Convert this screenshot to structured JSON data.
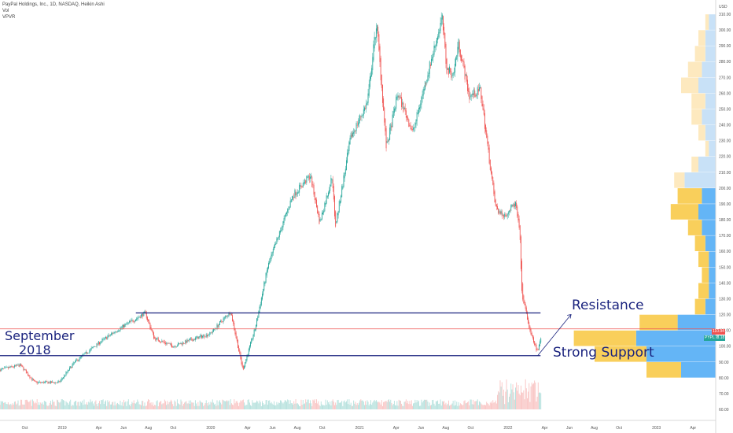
{
  "header": {
    "symbol_line": "PayPal Holdings, Inc., 1D, NASDAQ, Heikin Ashi",
    "vol_label": "Vol",
    "vpvr_label": "VPVR"
  },
  "currency_label": "USD",
  "annotations": {
    "resistance": "Resistance",
    "strong_support": "Strong Support",
    "september": "September",
    "year": "2018"
  },
  "price_tags": [
    {
      "label": "110.94",
      "color": "#ef5350",
      "value": 110.94
    },
    {
      "label": "108.18",
      "color": "#26a69a",
      "value": 108.18
    },
    {
      "label": "PYPL",
      "color": "#26a69a",
      "value": 108.18
    }
  ],
  "colors": {
    "bull": "#26a69a",
    "bear": "#ef5350",
    "level_line": "#1a237e",
    "current_line": "#ef5350",
    "vp_yellow": "#f9cf5b",
    "vp_blue": "#64b5f6",
    "vp_yellow_light": "#fde9bf",
    "vp_blue_light": "#c8e1f7"
  },
  "chart_data": {
    "type": "candlestick",
    "subtype": "heikin-ashi",
    "title": "PayPal Holdings, Inc., 1D, NASDAQ, Heikin Ashi",
    "y_unit": "USD",
    "ylim": [
      60,
      310
    ],
    "y_ticks": [
      60,
      70,
      80,
      90,
      100,
      110,
      120,
      130,
      140,
      150,
      160,
      170,
      180,
      190,
      200,
      210,
      220,
      230,
      240,
      250,
      260,
      270,
      280,
      290,
      300,
      310
    ],
    "x_ticks": [
      "Oct",
      "2019",
      "Apr",
      "Jun",
      "Aug",
      "Oct",
      "2020",
      "Apr",
      "Jun",
      "Aug",
      "Oct",
      "2021",
      "Apr",
      "Jun",
      "Aug",
      "Oct",
      "2022",
      "Apr",
      "Jun",
      "Aug",
      "Oct",
      "2023",
      "Apr"
    ],
    "x_range": [
      "2018-08-01",
      "2023-06-15"
    ],
    "price_path": [
      [
        "2018-08-01",
        85
      ],
      [
        "2018-09-20",
        88
      ],
      [
        "2018-10-25",
        77
      ],
      [
        "2018-12-24",
        77
      ],
      [
        "2019-02-01",
        90
      ],
      [
        "2019-04-01",
        102
      ],
      [
        "2019-05-15",
        110
      ],
      [
        "2019-07-24",
        121
      ],
      [
        "2019-08-15",
        105
      ],
      [
        "2019-10-01",
        100
      ],
      [
        "2019-11-15",
        104
      ],
      [
        "2019-12-31",
        108
      ],
      [
        "2020-02-19",
        122
      ],
      [
        "2020-03-20",
        85
      ],
      [
        "2020-04-20",
        112
      ],
      [
        "2020-05-20",
        150
      ],
      [
        "2020-07-20",
        195
      ],
      [
        "2020-09-02",
        208
      ],
      [
        "2020-09-25",
        178
      ],
      [
        "2020-10-26",
        208
      ],
      [
        "2020-11-02",
        175
      ],
      [
        "2020-12-10",
        232
      ],
      [
        "2021-01-20",
        254
      ],
      [
        "2021-02-12",
        305
      ],
      [
        "2021-03-08",
        225
      ],
      [
        "2021-04-05",
        260
      ],
      [
        "2021-05-12",
        235
      ],
      [
        "2021-06-10",
        265
      ],
      [
        "2021-07-23",
        308
      ],
      [
        "2021-08-03",
        275
      ],
      [
        "2021-08-20",
        272
      ],
      [
        "2021-09-01",
        292
      ],
      [
        "2021-09-28",
        258
      ],
      [
        "2021-10-25",
        262
      ],
      [
        "2021-11-10",
        230
      ],
      [
        "2021-12-01",
        188
      ],
      [
        "2021-12-20",
        182
      ],
      [
        "2022-01-20",
        190
      ],
      [
        "2022-01-31",
        168
      ],
      [
        "2022-02-03",
        135
      ],
      [
        "2022-02-25",
        108
      ],
      [
        "2022-03-15",
        96
      ],
      [
        "2022-03-25",
        108
      ]
    ],
    "volume": {
      "peak_date": "2022-02-03",
      "note": "volume bars at bottom of chart"
    },
    "horizontal_levels": [
      {
        "name": "Resistance",
        "value": 121,
        "start": "2019-07-01",
        "end": "2022-03-22"
      },
      {
        "name": "Strong Support",
        "value": 94,
        "start": "2018-08-01",
        "end": "2022-03-22"
      },
      {
        "name": "current",
        "value": 110.94,
        "start": "2018-08-01",
        "end": "2023-06-15"
      }
    ],
    "volume_profile": [
      {
        "price": 85,
        "up": 10,
        "down": 10
      },
      {
        "price": 95,
        "up": 15,
        "down": 20
      },
      {
        "price": 105,
        "up": 18,
        "down": 23
      },
      {
        "price": 115,
        "up": 11,
        "down": 11
      },
      {
        "price": 125,
        "up": 3,
        "down": 3
      },
      {
        "price": 135,
        "up": 3,
        "down": 2
      },
      {
        "price": 145,
        "up": 2,
        "down": 2
      },
      {
        "price": 155,
        "up": 3,
        "down": 2
      },
      {
        "price": 165,
        "up": 3,
        "down": 3
      },
      {
        "price": 175,
        "up": 4,
        "down": 4
      },
      {
        "price": 185,
        "up": 8,
        "down": 5
      },
      {
        "price": 195,
        "up": 7,
        "down": 4
      },
      {
        "price": 205,
        "up": 3,
        "down": 9
      },
      {
        "price": 215,
        "up": 2,
        "down": 5
      },
      {
        "price": 225,
        "up": 1,
        "down": 2
      },
      {
        "price": 235,
        "up": 2,
        "down": 3
      },
      {
        "price": 245,
        "up": 3,
        "down": 4
      },
      {
        "price": 255,
        "up": 4,
        "down": 3
      },
      {
        "price": 265,
        "up": 5,
        "down": 5
      },
      {
        "price": 275,
        "up": 4,
        "down": 4
      },
      {
        "price": 285,
        "up": 3,
        "down": 3
      },
      {
        "price": 295,
        "up": 2,
        "down": 3
      },
      {
        "price": 305,
        "up": 1,
        "down": 2
      }
    ],
    "grid": false,
    "legend": "top-left"
  }
}
